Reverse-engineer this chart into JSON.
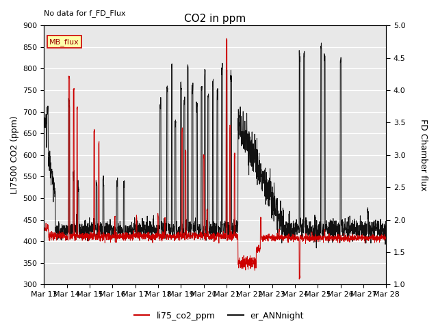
{
  "title": "CO2 in ppm",
  "top_left_text": "No data for f_FD_Flux",
  "legend_box_text": "MB_flux",
  "ylabel_left": "LI7500 CO2 (ppm)",
  "ylabel_right": "FD Chamber flux",
  "ylim_left": [
    300,
    900
  ],
  "ylim_right": [
    1.0,
    5.0
  ],
  "yticks_left": [
    300,
    350,
    400,
    450,
    500,
    550,
    600,
    650,
    700,
    750,
    800,
    850,
    900
  ],
  "yticks_right": [
    1.0,
    1.5,
    2.0,
    2.5,
    3.0,
    3.5,
    4.0,
    4.5,
    5.0
  ],
  "xticklabels": [
    "Mar 13",
    "Mar 14",
    "Mar 15",
    "Mar 16",
    "Mar 17",
    "Mar 18",
    "Mar 19",
    "Mar 20",
    "Mar 21",
    "Mar 22",
    "Mar 23",
    "Mar 24",
    "Mar 25",
    "Mar 26",
    "Mar 27",
    "Mar 28"
  ],
  "line1_color": "#cc0000",
  "line1_label": "li75_co2_ppm",
  "line2_color": "#111111",
  "line2_label": "er_ANNnight",
  "plot_bg_color": "#e8e8e8",
  "legend_box_facecolor": "#ffffaa",
  "legend_box_edgecolor": "#cc0000",
  "title_fontsize": 11,
  "axis_fontsize": 9,
  "tick_fontsize": 8,
  "figsize": [
    6.4,
    4.8
  ],
  "dpi": 100
}
